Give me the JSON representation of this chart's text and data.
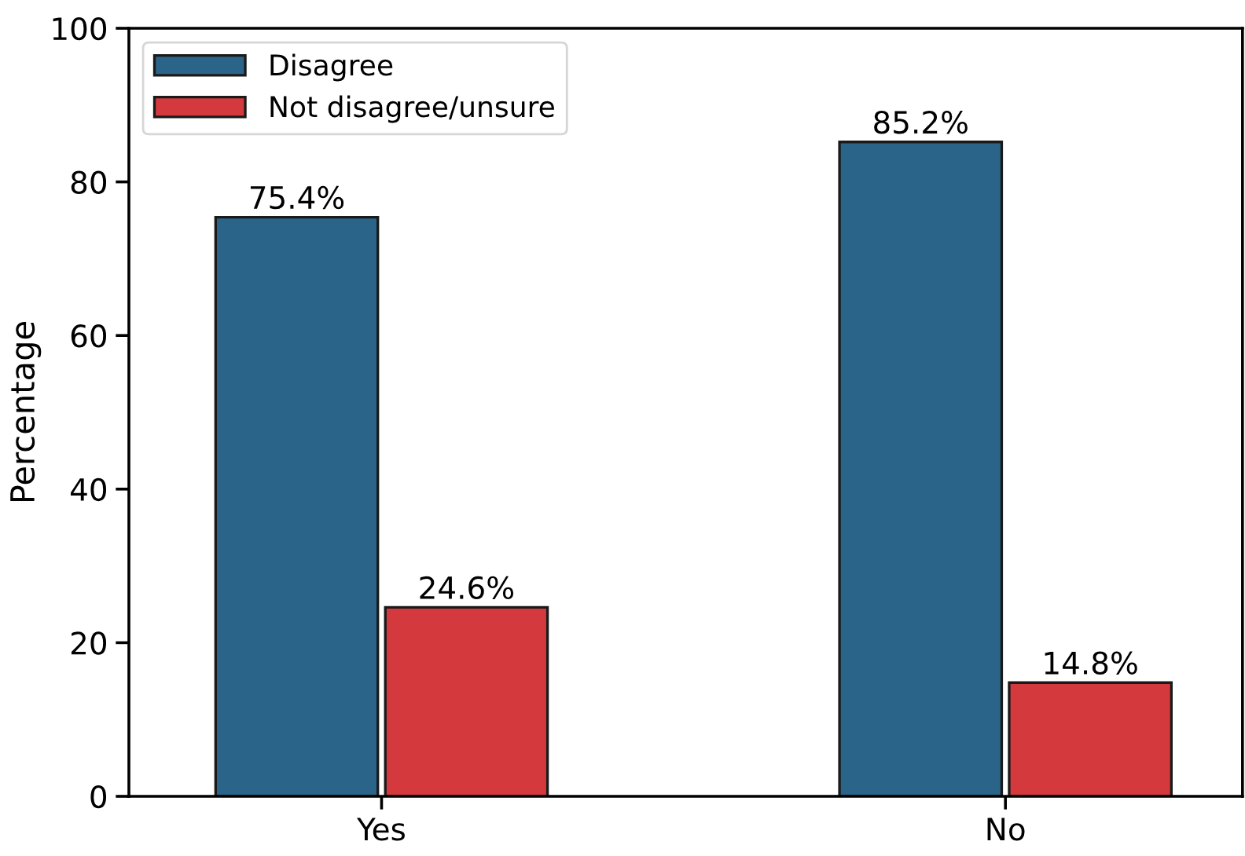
{
  "chart_data": {
    "type": "bar",
    "ylabel": "Percentage",
    "categories": [
      "Yes",
      "No"
    ],
    "series": [
      {
        "name": "Disagree",
        "color": "#2b6489",
        "values": [
          75.4,
          85.2
        ],
        "value_labels": [
          "75.4%",
          "85.2%"
        ]
      },
      {
        "name": "Not disagree/unsure",
        "color": "#d43a3d",
        "values": [
          24.6,
          14.8
        ],
        "value_labels": [
          "24.6%",
          "14.8%"
        ]
      }
    ],
    "ylim": [
      0,
      100
    ],
    "yticks": [
      0,
      20,
      40,
      60,
      80,
      100
    ],
    "grid": false,
    "legend": "top left"
  }
}
